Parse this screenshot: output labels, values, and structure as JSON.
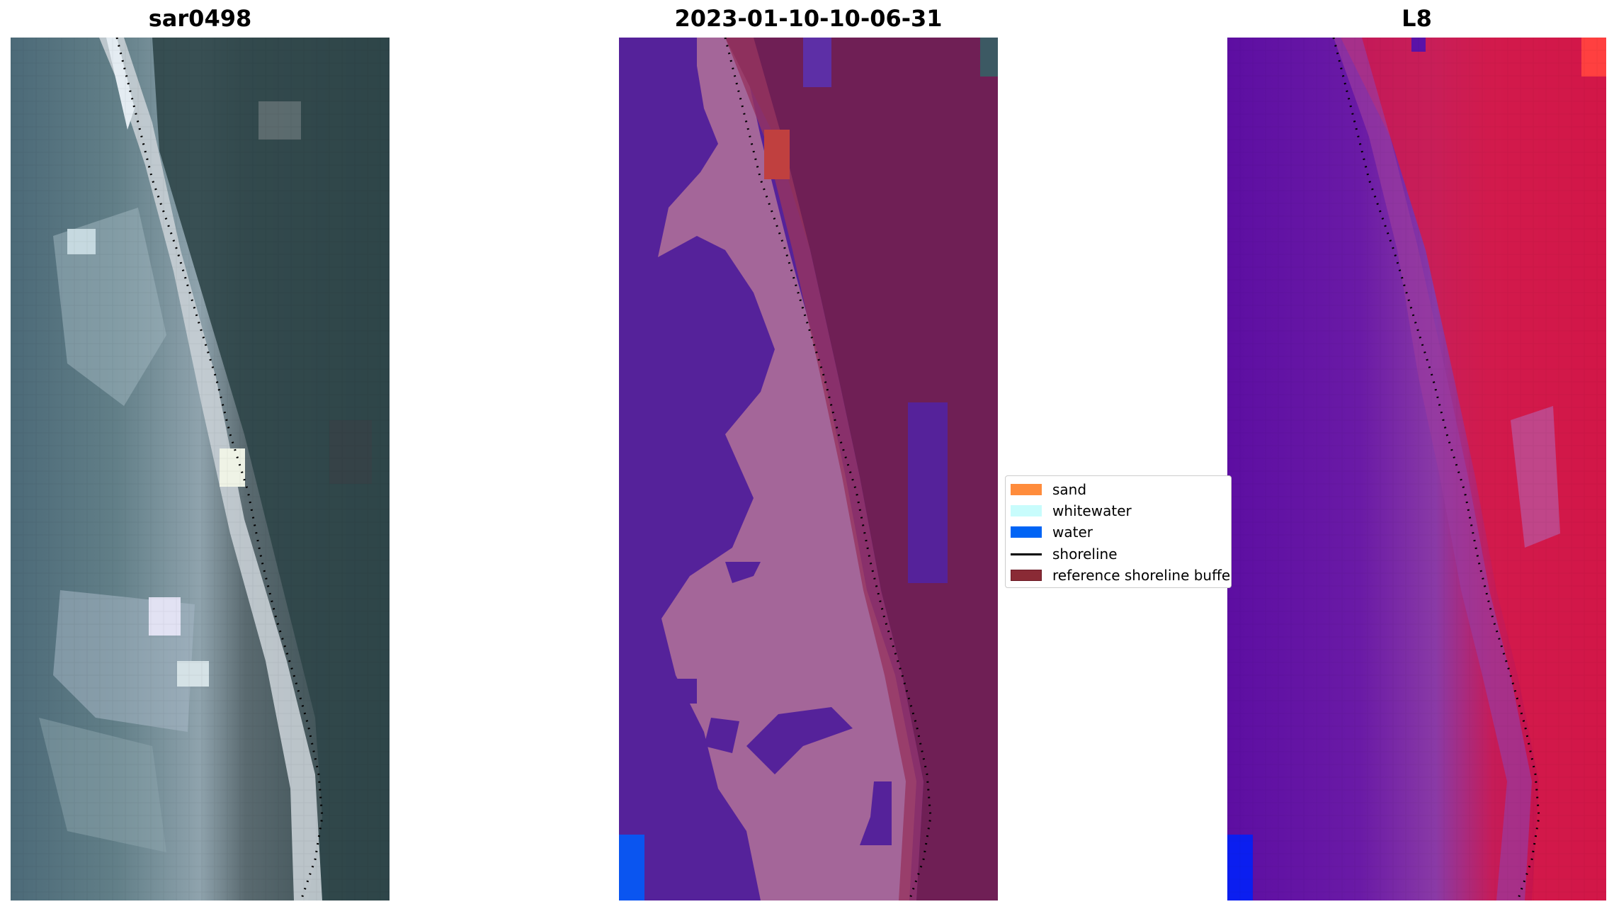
{
  "figure": {
    "titles": {
      "rgb": "sar0498",
      "classified": "2023-01-10-10-06-31",
      "landsat": "L8"
    }
  },
  "legend": {
    "items": [
      {
        "label": "sand",
        "kind": "patch",
        "color": "#ff8c3c"
      },
      {
        "label": "whitewater",
        "kind": "patch",
        "color": "#c8fcfc"
      },
      {
        "label": "water",
        "kind": "patch",
        "color": "#0064f5"
      },
      {
        "label": "shoreline",
        "kind": "line",
        "color": "#000000"
      },
      {
        "label": "reference shoreline buffer",
        "kind": "patch",
        "color": "#8a2a35"
      }
    ]
  },
  "colors": {
    "rgb_sea": "#4a6878",
    "rgb_sand": "#c8cfd6",
    "rgb_land": "#2f4448",
    "class_sea": "#55229a",
    "class_nearshore": "#a46699",
    "class_land": "#6f1f55",
    "class_buffer": "#96345f",
    "l8_sea": "#5e11a3",
    "l8_land": "#c8103f"
  }
}
